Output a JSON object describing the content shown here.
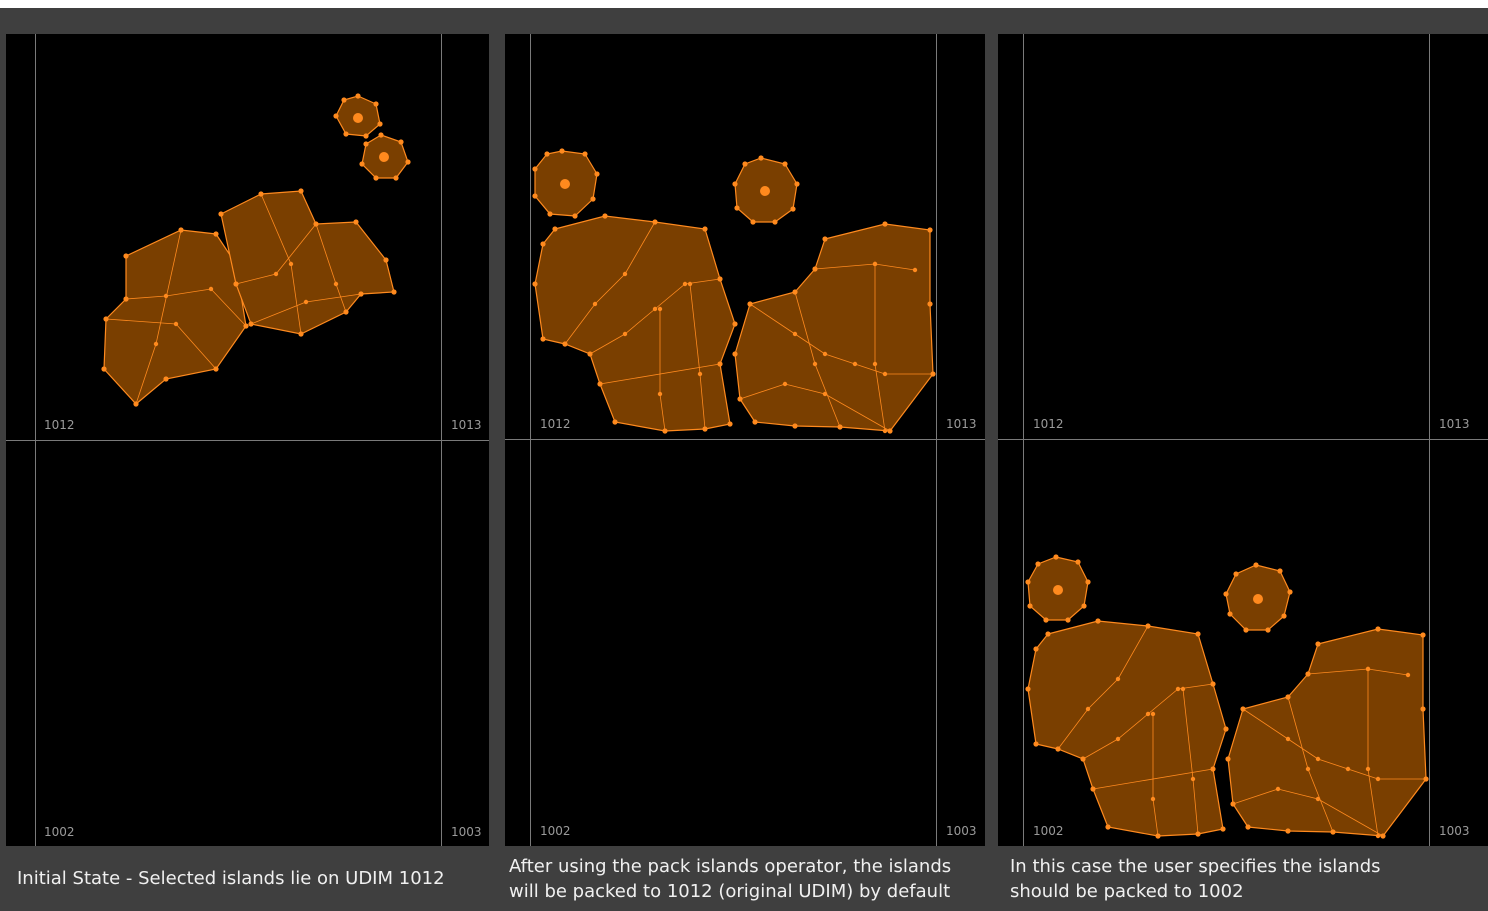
{
  "panels": [
    {
      "id": "initial",
      "tiles": {
        "top_left": "1012",
        "top_right": "1013",
        "bottom_left": "1002",
        "bottom_right": "1003"
      },
      "caption": "Initial State - Selected islands lie on UDIM 1012"
    },
    {
      "id": "default-pack",
      "tiles": {
        "top_left": "1012",
        "top_right": "1013",
        "bottom_left": "1002",
        "bottom_right": "1003"
      },
      "caption": "After using the pack islands operator, the islands\nwill be packed to 1012 (original UDIM) by default"
    },
    {
      "id": "target-pack",
      "tiles": {
        "top_left": "1012",
        "top_right": "1013",
        "bottom_left": "1002",
        "bottom_right": "1003"
      },
      "caption": "In this case the user specifies the islands\nshould be packed to 1002"
    }
  ],
  "colors": {
    "background": "#000000",
    "frame": "#3f3f3f",
    "grid": "#7a7a7a",
    "island_fill": "#7a3f00",
    "island_edge": "#ff8a1e",
    "vertex": "#ff8a1e",
    "caption_text": "#f0f0f0",
    "tile_label": "#9a9a9a"
  }
}
